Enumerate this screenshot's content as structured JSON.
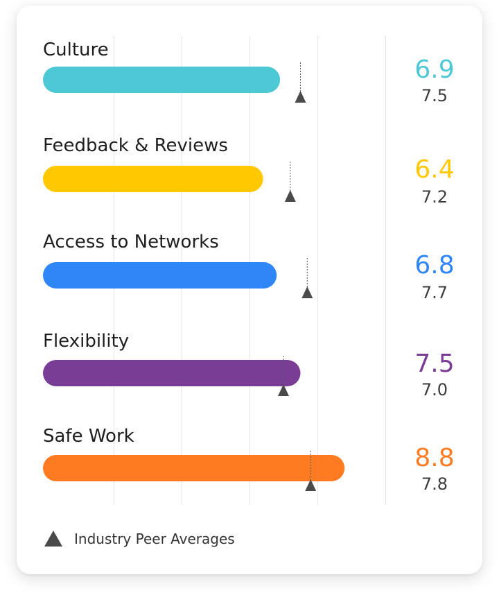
{
  "chart_data": {
    "type": "bar",
    "orientation": "horizontal",
    "categories": [
      "Culture",
      "Feedback & Reviews",
      "Access to Networks",
      "Flexibility",
      "Safe Work"
    ],
    "series": [
      {
        "values": [
          6.9,
          6.4,
          6.8,
          7.5,
          8.8
        ],
        "colors": [
          "#4DC8D5",
          "#FFC800",
          "#2F86F6",
          "#7A3D96",
          "#FF7B22"
        ]
      },
      {
        "name": "Industry Peer Averages",
        "marker": "triangle",
        "values": [
          7.5,
          7.2,
          7.7,
          7.0,
          7.8
        ]
      }
    ],
    "xlim": [
      0,
      10
    ],
    "grid": true,
    "legend": {
      "position": "bottom-left",
      "label": "Industry Peer Averages"
    }
  },
  "colors": {
    "peer_marker": "#4a4a4a",
    "peer_value": "#3c3c3c",
    "grid": "#e3e3e3",
    "label": "#1e1e1e"
  }
}
